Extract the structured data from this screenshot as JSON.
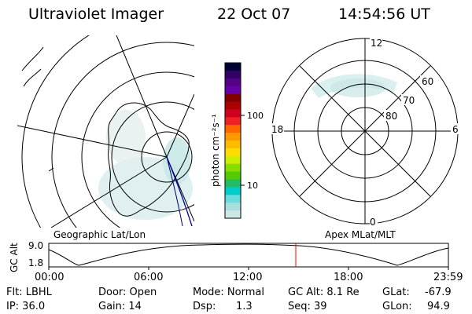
{
  "header": {
    "title": "Ultraviolet Imager",
    "date": "22 Oct 07",
    "time": "14:54:56 UT"
  },
  "colorbar": {
    "unit_label": "photon cm⁻²s⁻¹",
    "ticks": [
      "100",
      "10"
    ],
    "colors": [
      "#000033",
      "#330066",
      "#550088",
      "#6600aa",
      "#800000",
      "#aa0000",
      "#d00020",
      "#ee2222",
      "#ff6600",
      "#ff9900",
      "#ffbb00",
      "#ffdd00",
      "#ccee00",
      "#88dd00",
      "#55cc00",
      "#22bb66",
      "#00cccc",
      "#66dddd",
      "#aadddd",
      "#cce8e8"
    ]
  },
  "right_panel": {
    "mlt_labels": {
      "top": "12",
      "bottom": "0",
      "left": "18",
      "right": "6"
    },
    "mlat_labels": [
      "80",
      "70",
      "60"
    ]
  },
  "panel_labels": {
    "left": "Geographic Lat/Lon",
    "right": "Apex MLat/MLT"
  },
  "gc_alt_plot": {
    "ylabel": "GC Alt",
    "y_max": "9.0",
    "y_min": "1.8",
    "x_ticks": [
      "00:00",
      "06:00",
      "12:00",
      "18:00",
      "23:59"
    ],
    "marker_color": "#ff0000"
  },
  "info": {
    "flt": "Flt: LBHL",
    "door": "Door: Open",
    "mode": "Mode: Normal",
    "gc_alt": "GC Alt: 8.1 Re",
    "glat": "GLat:",
    "glat_value": "-67.9",
    "ip": "IP: 36.0",
    "gain": "Gain: 14",
    "dsp": "Dsp:",
    "dsp_value": "1.3",
    "seq": "Seq: 39",
    "glon": "GLon:",
    "glon_value": "94.9"
  }
}
